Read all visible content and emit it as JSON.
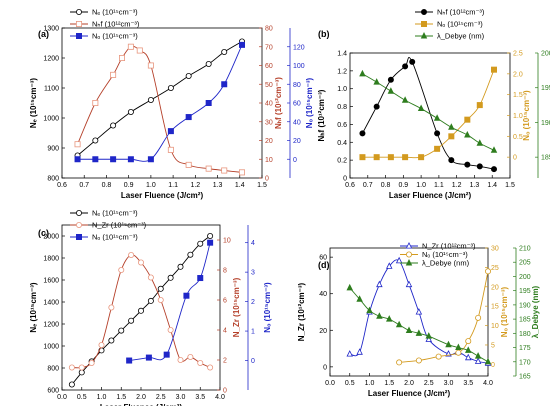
{
  "colors": {
    "black": "#000000",
    "red": "#b5402a",
    "red_light": "#e8967e",
    "blue": "#1f26c8",
    "gold": "#d39a1e",
    "green": "#2e7d1e"
  },
  "chart_data": [
    {
      "panel": "(a)",
      "type": "line",
      "xlabel": "Laser Fluence (J/cm²)",
      "xlim": [
        0.6,
        1.5
      ],
      "xticks": [
        "0.6",
        "0.7",
        "0.8",
        "0.9",
        "1.0",
        "1.1",
        "1.2",
        "1.3",
        "1.4",
        "1.5"
      ],
      "axes": [
        {
          "label": "Nₑ (10¹⁵cm⁻³)",
          "side": "left",
          "lim": [
            800,
            1300
          ],
          "ticks": [
            "800",
            "900",
            "1000",
            "1100",
            "1200",
            "1300"
          ]
        },
        {
          "label": "Nₕf (10¹²cm⁻³)",
          "side": "right",
          "lim": [
            0,
            80
          ],
          "ticks": [
            "0",
            "10",
            "20",
            "30",
            "40",
            "50",
            "60",
            "70",
            "80"
          ]
        },
        {
          "label": "Nₒ (10¹⁵cm⁻³)",
          "side": "right-outer",
          "lim": [
            -20,
            140
          ],
          "ticks": [
            "0",
            "20",
            "40",
            "60",
            "80",
            "100",
            "120"
          ]
        }
      ],
      "series": [
        {
          "name": "Nₑ (10¹⁵cm⁻³)",
          "axis": 0,
          "marker": "circle-open",
          "color": "#000000",
          "x": [
            0.67,
            0.75,
            0.83,
            0.91,
            1.0,
            1.09,
            1.17,
            1.26,
            1.33,
            1.41
          ],
          "y": [
            875,
            925,
            975,
            1020,
            1060,
            1100,
            1140,
            1180,
            1220,
            1255
          ]
        },
        {
          "name": "Nₕf (10¹²cm⁻³)",
          "axis": 1,
          "marker": "square-open",
          "color": "#b5402a",
          "x": [
            0.67,
            0.75,
            0.83,
            0.87,
            0.91,
            0.95,
            1.0,
            1.09,
            1.17,
            1.26,
            1.33,
            1.41
          ],
          "y": [
            18,
            40,
            55,
            64,
            70,
            68,
            60,
            15,
            7,
            5,
            4,
            3
          ]
        },
        {
          "name": "Nₒ (10¹⁵cm⁻³)",
          "axis": 2,
          "marker": "square",
          "color": "#1f26c8",
          "x": [
            0.67,
            0.75,
            0.83,
            0.91,
            1.0,
            1.09,
            1.17,
            1.26,
            1.33,
            1.41
          ],
          "y": [
            0,
            0,
            0,
            0,
            0,
            30,
            45,
            60,
            80,
            122
          ]
        }
      ]
    },
    {
      "panel": "(b)",
      "type": "line",
      "xlabel": "Laser Fluence (J/cm²)",
      "xlim": [
        0.6,
        1.5
      ],
      "xticks": [
        "0.6",
        "0.7",
        "0.8",
        "0.9",
        "1.0",
        "1.1",
        "1.2",
        "1.3",
        "1.4",
        "1.5"
      ],
      "axes": [
        {
          "label": "Nₕf (10¹²cm⁻³)",
          "side": "left",
          "lim": [
            0,
            1.4
          ],
          "ticks": [
            "0",
            "0.2",
            "0.4",
            "0.6",
            "0.8",
            "1.0",
            "1.2",
            "1.4"
          ]
        },
        {
          "label": "Nₒ (10¹⁵cm⁻³)",
          "side": "right",
          "lim": [
            -0.5,
            2.5
          ],
          "ticks": [
            "0",
            "0.5",
            "1.0",
            "1.5",
            "2.0",
            "2.5"
          ]
        },
        {
          "label": "λ_Debye (nm)",
          "side": "right-outer",
          "lim": [
            182,
            200
          ],
          "ticks": [
            "185",
            "190",
            "195",
            "200"
          ]
        }
      ],
      "series": [
        {
          "name": "Nₕf (10¹²cm⁻³)",
          "axis": 0,
          "marker": "circle-half",
          "color": "#000000",
          "x": [
            0.67,
            0.75,
            0.83,
            0.91,
            0.95,
            1.09,
            1.17,
            1.26,
            1.33,
            1.41
          ],
          "y": [
            0.5,
            0.8,
            1.1,
            1.25,
            1.3,
            0.5,
            0.2,
            0.15,
            0.13,
            0.1
          ]
        },
        {
          "name": "Nₒ (10¹⁵cm⁻³)",
          "axis": 1,
          "marker": "square-half",
          "color": "#d39a1e",
          "x": [
            0.67,
            0.75,
            0.83,
            0.91,
            1.0,
            1.09,
            1.17,
            1.26,
            1.33,
            1.41
          ],
          "y": [
            0,
            0,
            0,
            0,
            0,
            0.2,
            0.5,
            0.9,
            1.25,
            2.1
          ]
        },
        {
          "name": "λ_Debye (nm)",
          "axis": 2,
          "marker": "triangle",
          "color": "#2e7d1e",
          "x": [
            0.67,
            0.75,
            0.83,
            0.91,
            1.0,
            1.09,
            1.17,
            1.26,
            1.33,
            1.41
          ],
          "y": [
            197,
            195.8,
            194.5,
            193.2,
            192,
            190.6,
            189.3,
            188.2,
            187,
            186
          ]
        }
      ]
    },
    {
      "panel": "(c)",
      "type": "line",
      "xlabel": "Laser Fluence (J/cm²)",
      "xlim": [
        0.0,
        4.0
      ],
      "xticks": [
        "0.0",
        "0.5",
        "1.0",
        "1.5",
        "2.0",
        "2.5",
        "3.0",
        "3.5",
        "4.0"
      ],
      "axes": [
        {
          "label": "Nₑ (10¹⁵cm⁻³)",
          "side": "left",
          "lim": [
            600,
            2100
          ],
          "ticks": [
            "600",
            "800",
            "1000",
            "1200",
            "1400",
            "1600",
            "1800",
            "2000"
          ]
        },
        {
          "label": "N_Zr (10¹⁵cm⁻³)",
          "side": "right",
          "lim": [
            0,
            11
          ],
          "ticks": [
            "0",
            "2",
            "4",
            "6",
            "8",
            "10"
          ]
        },
        {
          "label": "Nₒ (10¹⁵cm⁻³)",
          "side": "right-outer",
          "lim": [
            -1,
            4.6
          ],
          "ticks": [
            "0",
            "1",
            "2",
            "3",
            "4"
          ]
        }
      ],
      "series": [
        {
          "name": "Nₑ (10¹⁵cm⁻³)",
          "axis": 0,
          "marker": "circle-open",
          "color": "#000000",
          "x": [
            0.25,
            0.5,
            0.75,
            1.0,
            1.25,
            1.5,
            1.75,
            2.0,
            2.25,
            2.5,
            2.75,
            3.0,
            3.25,
            3.5,
            3.75
          ],
          "y": [
            650,
            760,
            860,
            960,
            1050,
            1140,
            1230,
            1320,
            1410,
            1520,
            1620,
            1720,
            1830,
            1930,
            2000
          ]
        },
        {
          "name": "N_Zr (10¹⁵cm⁻³)",
          "axis": 1,
          "marker": "circle-open",
          "color": "#b5402a",
          "x": [
            0.25,
            0.5,
            0.75,
            1.0,
            1.25,
            1.5,
            1.75,
            2.0,
            2.25,
            2.5,
            2.75,
            3.0,
            3.25,
            3.5,
            3.75
          ],
          "y": [
            1.5,
            1.5,
            1.8,
            3.0,
            5.5,
            8.0,
            9.0,
            8.5,
            7.5,
            6.0,
            4.0,
            2.0,
            2.2,
            1.8,
            1.5
          ]
        },
        {
          "name": "Nₒ (10¹⁵cm⁻³)",
          "axis": 2,
          "marker": "square",
          "color": "#1f26c8",
          "x": [
            1.7,
            2.2,
            2.65,
            3.15,
            3.5,
            3.75
          ],
          "y": [
            0,
            0.1,
            0.2,
            2.2,
            2.8,
            4.0
          ]
        }
      ]
    },
    {
      "panel": "(d)",
      "type": "line",
      "xlabel": "Laser Fluence (J/cm²)",
      "xlim": [
        0.0,
        4.0
      ],
      "xticks": [
        "0.0",
        "0.5",
        "1.0",
        "1.5",
        "2.0",
        "2.5",
        "3.0",
        "3.5",
        "4.0"
      ],
      "axes": [
        {
          "label": "N_Zr (10¹²cm⁻³)",
          "side": "left",
          "lim": [
            -5,
            65
          ],
          "ticks": [
            "0",
            "20",
            "40",
            "60"
          ]
        },
        {
          "label": "Nₒ (10¹⁵cm⁻³)",
          "side": "right",
          "lim": [
            -3,
            30
          ],
          "ticks": [
            "0",
            "5",
            "10",
            "15",
            "20",
            "25",
            "30"
          ]
        },
        {
          "label": "λ_Debye (nm)",
          "side": "right-outer",
          "lim": [
            165,
            210
          ],
          "ticks": [
            "165",
            "170",
            "175",
            "180",
            "185",
            "190",
            "195",
            "200",
            "205",
            "210"
          ]
        }
      ],
      "series": [
        {
          "name": "N_Zr (10¹²cm⁻³)",
          "axis": 0,
          "marker": "triangle-open",
          "color": "#1f26c8",
          "x": [
            0.5,
            0.75,
            1.0,
            1.25,
            1.5,
            1.75,
            2.0,
            2.25,
            2.5,
            3.0,
            3.25,
            3.5,
            3.75,
            4.0
          ],
          "y": [
            7,
            8,
            30,
            45,
            55,
            58,
            45,
            30,
            15,
            7,
            8,
            5,
            3,
            2
          ]
        },
        {
          "name": "Nₒ (10¹⁵cm⁻³)",
          "axis": 1,
          "marker": "circle-open",
          "color": "#d39a1e",
          "x": [
            1.75,
            2.25,
            2.75,
            3.25,
            3.5,
            3.75,
            4.0
          ],
          "y": [
            0.5,
            1,
            2,
            3,
            6,
            12,
            24
          ]
        },
        {
          "name": "λ_Debye (nm)",
          "axis": 2,
          "marker": "triangle",
          "color": "#2e7d1e",
          "x": [
            0.5,
            0.75,
            1.0,
            1.25,
            1.5,
            1.75,
            2.0,
            2.25,
            2.5,
            3.0,
            3.25,
            3.5,
            3.75,
            4.0
          ],
          "y": [
            196,
            192,
            188,
            186,
            185,
            183,
            181,
            180,
            179,
            176,
            175,
            174,
            172,
            170
          ]
        }
      ]
    }
  ]
}
